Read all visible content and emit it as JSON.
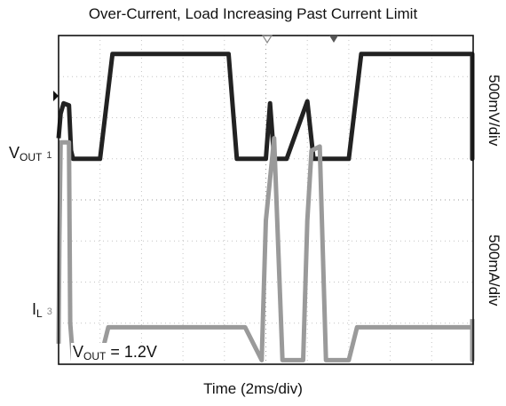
{
  "chart_data": {
    "type": "line",
    "title": "Over-Current, Load Increasing Past Current Limit",
    "xlabel": "Time (2ms/div)",
    "right_labels": [
      "500mV/div",
      "500mA/div"
    ],
    "channel_labels": {
      "vout": {
        "main": "V",
        "sub": "OUT",
        "marker": "1"
      },
      "il": {
        "main": "I",
        "sub": "L",
        "marker": "3"
      }
    },
    "annotation": {
      "main": "V",
      "sub": "OUT",
      "rest": " = 1.2V"
    },
    "x_divisions": 10,
    "y_divisions": 8,
    "grid": true,
    "series": [
      {
        "channel": "1",
        "color": "#222222",
        "x": [
          0,
          0.05,
          0.12,
          0.25,
          0.3,
          0.35,
          0.45,
          1.0,
          1.3,
          4.1,
          4.3,
          4.5,
          5.0,
          5.1,
          5.2,
          5.35,
          5.5,
          6.0,
          6.15,
          6.3,
          6.45,
          7.0,
          7.3,
          10.1,
          10.35,
          10.55
        ],
        "y": [
          5.5,
          6.1,
          6.35,
          6.3,
          5.2,
          5.0,
          5.0,
          5.0,
          7.55,
          7.55,
          5.0,
          5.0,
          5.0,
          6.35,
          5.0,
          5.0,
          5.0,
          6.4,
          5.0,
          5.0,
          5.0,
          5.0,
          7.55,
          7.55,
          5.0,
          6.1
        ]
      },
      {
        "channel": "3",
        "color": "#9a9a9a",
        "x": [
          0,
          0.02,
          0.05,
          0.25,
          0.28,
          0.35,
          1.0,
          1.2,
          4.5,
          4.9,
          5.0,
          5.2,
          5.4,
          5.9,
          6.0,
          6.1,
          6.3,
          6.45,
          7.0,
          7.2,
          10.3,
          10.45,
          10.55
        ],
        "y": [
          0.5,
          3.1,
          5.4,
          5.4,
          1.0,
          0.1,
          0.1,
          0.9,
          0.9,
          0.1,
          3.5,
          5.5,
          0.1,
          0.1,
          3.5,
          5.2,
          5.3,
          0.1,
          0.1,
          0.9,
          0.9,
          0.1,
          1.1
        ]
      }
    ]
  }
}
